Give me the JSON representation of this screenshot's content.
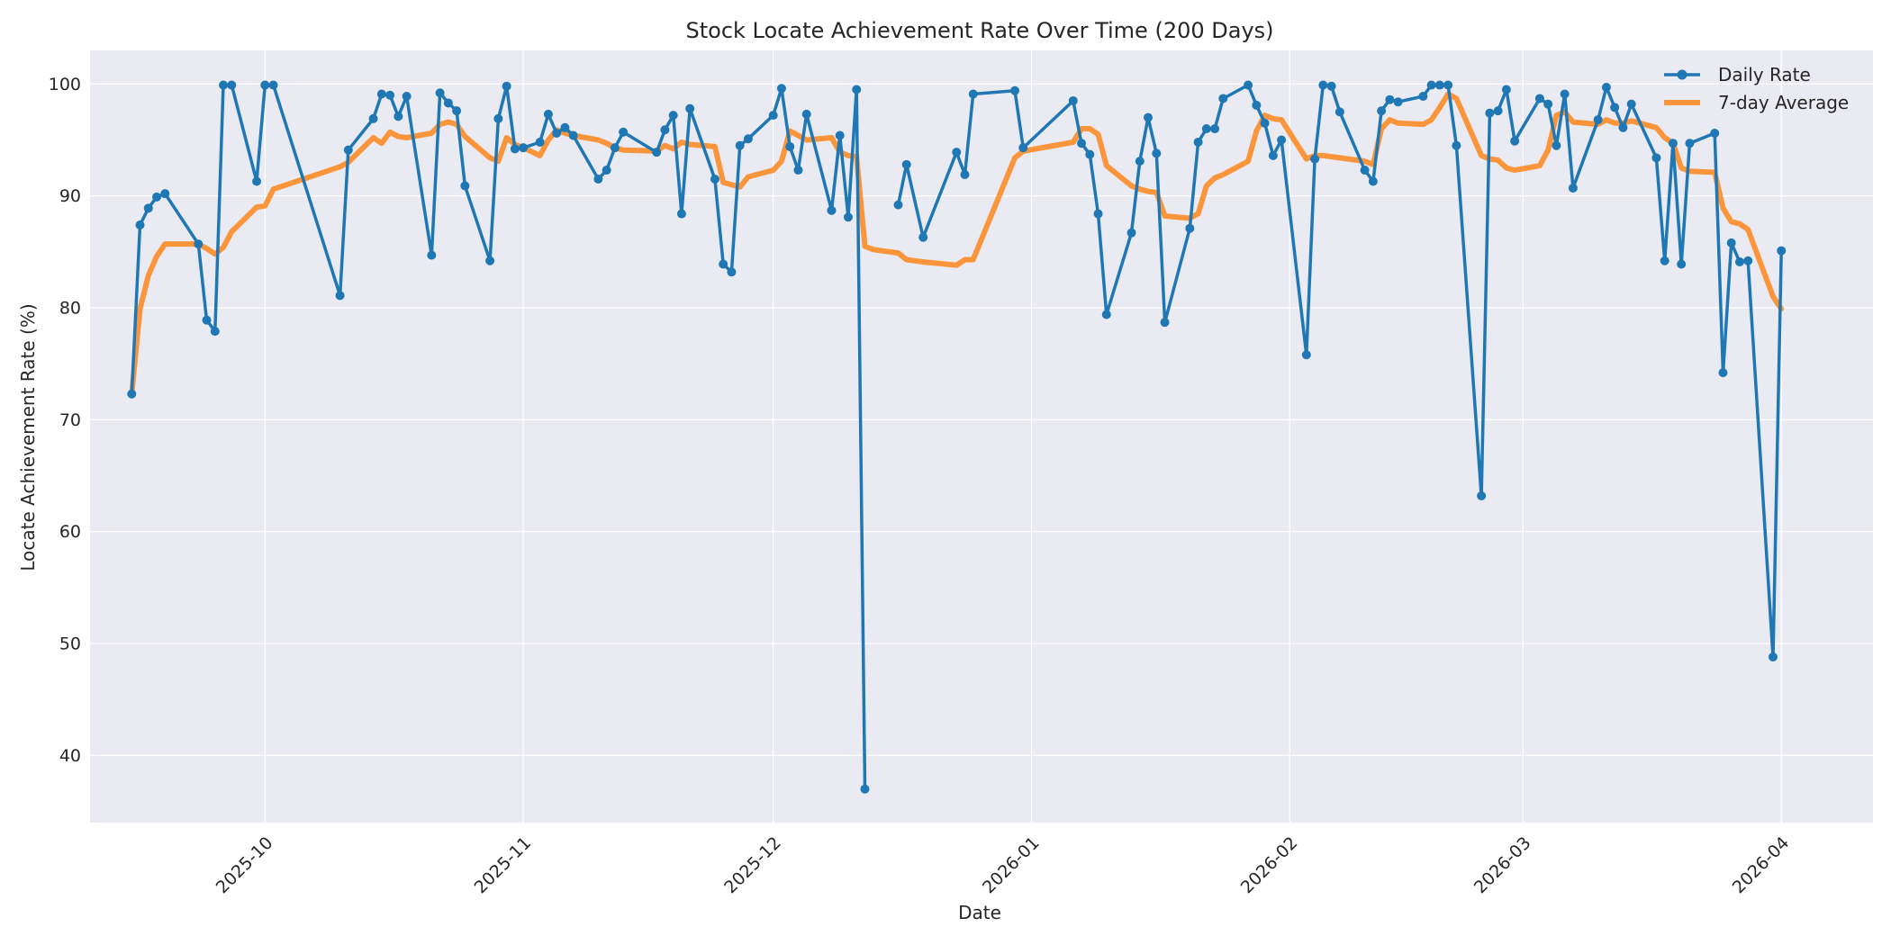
{
  "chart_data": {
    "type": "line",
    "title": "Stock Locate Achievement Rate Over Time (200 Days)",
    "xlabel": "Date",
    "ylabel": "Locate Achievement Rate (%)",
    "xlim": [
      "2025-09-10",
      "2026-04-12"
    ],
    "ylim": [
      34,
      103
    ],
    "yticks": [
      40,
      50,
      60,
      70,
      80,
      90,
      100
    ],
    "xticks": [
      "2025-10",
      "2025-11",
      "2025-12",
      "2026-01",
      "2026-02",
      "2026-03",
      "2026-04"
    ],
    "xtick_dates": [
      "2025-10-01",
      "2025-11-01",
      "2025-12-01",
      "2026-01-01",
      "2026-02-01",
      "2026-03-01",
      "2026-04-01"
    ],
    "grid": true,
    "legend_position": "top-right",
    "colors": {
      "daily": "#1f77b4",
      "average": "#ff7f0e",
      "plot_background": "#eaeaf2"
    },
    "series": [
      {
        "name": "Daily Rate",
        "x": [
          "2025-09-15",
          "2025-09-16",
          "2025-09-17",
          "2025-09-18",
          "2025-09-19",
          "2025-09-23",
          "2025-09-24",
          "2025-09-25",
          "2025-09-26",
          "2025-09-27",
          "2025-09-30",
          "2025-10-01",
          "2025-10-02",
          "2025-10-10",
          "2025-10-11",
          "2025-10-14",
          "2025-10-15",
          "2025-10-16",
          "2025-10-17",
          "2025-10-18",
          "2025-10-21",
          "2025-10-22",
          "2025-10-23",
          "2025-10-24",
          "2025-10-25",
          "2025-10-28",
          "2025-10-29",
          "2025-10-30",
          "2025-10-31",
          "2025-11-01",
          "2025-11-03",
          "2025-11-04",
          "2025-11-05",
          "2025-11-06",
          "2025-11-07",
          "2025-11-10",
          "2025-11-11",
          "2025-11-12",
          "2025-11-13",
          "2025-11-17",
          "2025-11-18",
          "2025-11-19",
          "2025-11-20",
          "2025-11-21",
          "2025-11-24",
          "2025-11-25",
          "2025-11-26",
          "2025-11-27",
          "2025-11-28",
          "2025-12-01",
          "2025-12-02",
          "2025-12-03",
          "2025-12-04",
          "2025-12-05",
          "2025-12-08",
          "2025-12-09",
          "2025-12-10",
          "2025-12-11",
          "2025-12-12",
          "2025-12-13",
          "2025-12-16",
          "2025-12-17",
          "2025-12-19",
          "2025-12-23",
          "2025-12-24",
          "2025-12-25",
          "2025-12-30",
          "2025-12-31",
          "2026-01-06",
          "2026-01-07",
          "2026-01-08",
          "2026-01-09",
          "2026-01-10",
          "2026-01-13",
          "2026-01-14",
          "2026-01-15",
          "2026-01-16",
          "2026-01-17",
          "2026-01-20",
          "2026-01-21",
          "2026-01-22",
          "2026-01-23",
          "2026-01-24",
          "2026-01-27",
          "2026-01-28",
          "2026-01-29",
          "2026-01-30",
          "2026-01-31",
          "2026-02-03",
          "2026-02-04",
          "2026-02-05",
          "2026-02-06",
          "2026-02-07",
          "2026-02-10",
          "2026-02-11",
          "2026-02-12",
          "2026-02-13",
          "2026-02-14",
          "2026-02-17",
          "2026-02-18",
          "2026-02-19",
          "2026-02-20",
          "2026-02-21",
          "2026-02-24",
          "2026-02-25",
          "2026-02-26",
          "2026-02-27",
          "2026-02-28",
          "2026-03-03",
          "2026-03-04",
          "2026-03-05",
          "2026-03-06",
          "2026-03-07",
          "2026-03-10",
          "2026-03-11",
          "2026-03-12",
          "2026-03-13",
          "2026-03-14",
          "2026-03-17",
          "2026-03-18",
          "2026-03-19",
          "2026-03-20",
          "2026-03-21",
          "2026-03-24",
          "2026-03-25",
          "2026-03-26",
          "2026-03-27",
          "2026-03-28",
          "2026-03-31",
          "2026-04-01"
        ],
        "y": [
          72.3,
          87.4,
          88.9,
          89.9,
          90.2,
          85.7,
          78.9,
          77.9,
          99.9,
          99.9,
          91.3,
          99.9,
          99.9,
          81.1,
          94.1,
          96.9,
          99.1,
          99.0,
          97.1,
          98.9,
          84.7,
          99.2,
          98.3,
          97.6,
          90.9,
          84.2,
          96.9,
          99.8,
          94.2,
          94.3,
          94.8,
          97.3,
          95.6,
          96.1,
          95.4,
          91.5,
          92.3,
          94.3,
          95.7,
          93.9,
          95.9,
          97.2,
          88.4,
          97.8,
          91.5,
          83.9,
          83.2,
          94.5,
          95.1,
          97.2,
          99.6,
          94.4,
          92.3,
          97.3,
          88.7,
          95.4,
          88.1,
          99.5,
          37.0,
          null,
          89.2,
          92.8,
          86.3,
          93.9,
          91.9,
          99.1,
          99.4,
          94.3,
          98.5,
          94.7,
          93.7,
          88.4,
          79.4,
          86.7,
          93.1,
          97.0,
          93.8,
          78.7,
          87.1,
          94.8,
          96.0,
          96.0,
          98.7,
          99.9,
          98.1,
          96.5,
          93.6,
          95.0,
          75.8,
          93.3,
          99.9,
          99.8,
          97.5,
          92.3,
          91.3,
          97.6,
          98.6,
          98.4,
          98.9,
          99.9,
          99.9,
          99.9,
          94.5,
          63.2,
          97.4,
          97.6,
          99.5,
          94.9,
          98.7,
          98.2,
          94.5,
          99.1,
          90.7,
          96.8,
          99.7,
          97.9,
          96.1,
          98.2,
          93.4,
          84.2,
          94.7,
          83.9,
          94.7,
          95.6,
          74.2,
          85.8,
          84.1,
          84.2,
          48.8,
          85.1
        ]
      },
      {
        "name": "7-day Average",
        "x": [
          "2025-09-15",
          "2025-09-16",
          "2025-09-17",
          "2025-09-18",
          "2025-09-19",
          "2025-09-23",
          "2025-09-24",
          "2025-09-25",
          "2025-09-26",
          "2025-09-27",
          "2025-09-30",
          "2025-10-01",
          "2025-10-02",
          "2025-10-10",
          "2025-10-11",
          "2025-10-14",
          "2025-10-15",
          "2025-10-16",
          "2025-10-17",
          "2025-10-18",
          "2025-10-21",
          "2025-10-22",
          "2025-10-23",
          "2025-10-24",
          "2025-10-25",
          "2025-10-28",
          "2025-10-29",
          "2025-10-30",
          "2025-10-31",
          "2025-11-01",
          "2025-11-03",
          "2025-11-04",
          "2025-11-05",
          "2025-11-06",
          "2025-11-07",
          "2025-11-10",
          "2025-11-11",
          "2025-11-12",
          "2025-11-13",
          "2025-11-17",
          "2025-11-18",
          "2025-11-19",
          "2025-11-20",
          "2025-11-21",
          "2025-11-24",
          "2025-11-25",
          "2025-11-26",
          "2025-11-27",
          "2025-11-28",
          "2025-12-01",
          "2025-12-02",
          "2025-12-03",
          "2025-12-04",
          "2025-12-05",
          "2025-12-08",
          "2025-12-09",
          "2025-12-10",
          "2025-12-11",
          "2025-12-12",
          "2025-12-13",
          "2025-12-16",
          "2025-12-17",
          "2025-12-19",
          "2025-12-23",
          "2025-12-24",
          "2025-12-25",
          "2025-12-30",
          "2025-12-31",
          "2026-01-06",
          "2026-01-07",
          "2026-01-08",
          "2026-01-09",
          "2026-01-10",
          "2026-01-13",
          "2026-01-14",
          "2026-01-15",
          "2026-01-16",
          "2026-01-17",
          "2026-01-20",
          "2026-01-21",
          "2026-01-22",
          "2026-01-23",
          "2026-01-24",
          "2026-01-27",
          "2026-01-28",
          "2026-01-29",
          "2026-01-30",
          "2026-01-31",
          "2026-02-03",
          "2026-02-04",
          "2026-02-05",
          "2026-02-06",
          "2026-02-07",
          "2026-02-10",
          "2026-02-11",
          "2026-02-12",
          "2026-02-13",
          "2026-02-14",
          "2026-02-17",
          "2026-02-18",
          "2026-02-19",
          "2026-02-20",
          "2026-02-21",
          "2026-02-24",
          "2026-02-25",
          "2026-02-26",
          "2026-02-27",
          "2026-02-28",
          "2026-03-03",
          "2026-03-04",
          "2026-03-05",
          "2026-03-06",
          "2026-03-07",
          "2026-03-10",
          "2026-03-11",
          "2026-03-12",
          "2026-03-13",
          "2026-03-14",
          "2026-03-17",
          "2026-03-18",
          "2026-03-19",
          "2026-03-20",
          "2026-03-21",
          "2026-03-24",
          "2026-03-25",
          "2026-03-26",
          "2026-03-27",
          "2026-03-28",
          "2026-03-31",
          "2026-04-01"
        ],
        "y": [
          72.3,
          79.9,
          82.9,
          84.6,
          85.7,
          85.7,
          85.3,
          84.8,
          85.4,
          86.8,
          89.0,
          89.1,
          90.6,
          92.6,
          93.0,
          95.2,
          94.7,
          95.7,
          95.3,
          95.2,
          95.6,
          96.4,
          96.6,
          96.4,
          95.3,
          93.4,
          93.1,
          95.2,
          94.6,
          94.3,
          93.6,
          95.0,
          95.9,
          95.6,
          95.4,
          95.0,
          94.7,
          94.3,
          94.1,
          94.0,
          94.5,
          94.2,
          94.8,
          94.6,
          94.4,
          91.2,
          91.0,
          90.8,
          91.7,
          92.3,
          93.1,
          95.8,
          95.4,
          95.0,
          95.2,
          93.9,
          93.6,
          93.5,
          85.5,
          85.2,
          84.9,
          84.3,
          84.1,
          83.8,
          84.3,
          84.3,
          93.4,
          94.0,
          94.8,
          96.0,
          96.0,
          95.5,
          92.7,
          90.9,
          90.6,
          90.4,
          90.3,
          88.2,
          88.0,
          88.4,
          90.9,
          91.6,
          91.9,
          93.1,
          95.8,
          97.2,
          96.9,
          96.8,
          93.3,
          93.6,
          93.6,
          93.5,
          93.4,
          93.1,
          92.8,
          96.0,
          96.8,
          96.5,
          96.4,
          96.8,
          97.9,
          99.1,
          98.7,
          93.6,
          93.3,
          93.2,
          92.5,
          92.3,
          92.7,
          94.1,
          97.2,
          97.5,
          96.6,
          96.4,
          96.8,
          96.5,
          96.5,
          96.7,
          96.1,
          95.2,
          94.7,
          92.5,
          92.2,
          92.1,
          88.9,
          87.7,
          87.5,
          87.0,
          81.0,
          79.9
        ]
      }
    ]
  }
}
